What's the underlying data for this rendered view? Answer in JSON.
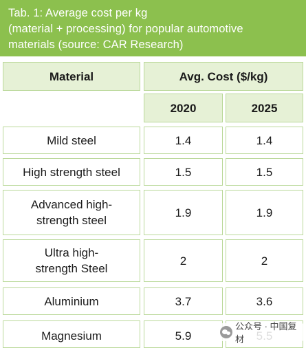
{
  "caption": {
    "lines": [
      "Tab. 1: Average cost per kg",
      "(material + processing) for popular automotive",
      "materials (source: CAR Research)"
    ]
  },
  "table": {
    "header": {
      "material": "Material",
      "cost": "Avg. Cost ($/kg)"
    },
    "years": [
      "2020",
      "2025"
    ],
    "rows": [
      {
        "material": "Mild steel",
        "v2020": "1.4",
        "v2025": "1.4"
      },
      {
        "material": "High strength steel",
        "v2020": "1.5",
        "v2025": "1.5"
      },
      {
        "material": "Advanced high-strength steel",
        "v2020": "1.9",
        "v2025": "1.9"
      },
      {
        "material": "Ultra high-strength Steel",
        "v2020": "2",
        "v2025": "2"
      },
      {
        "material": "Aluminium",
        "v2020": "3.7",
        "v2025": "3.6"
      },
      {
        "material": "Magnesium",
        "v2020": "5.9",
        "v2025": "5.5"
      }
    ]
  },
  "watermark": {
    "text": "公众号 · 中国复材",
    "icon": "wechat-icon"
  }
}
